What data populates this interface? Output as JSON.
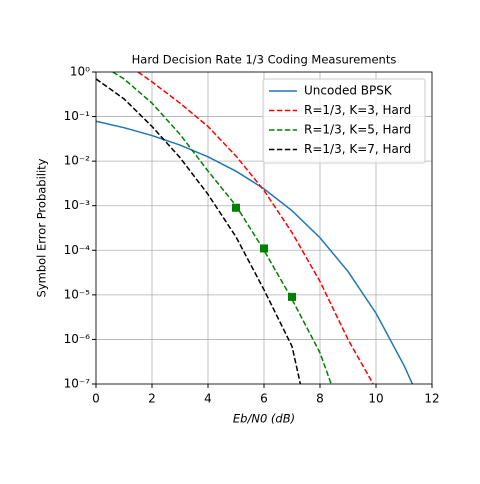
{
  "chart_data": {
    "type": "line",
    "title": "Hard Decision Rate 1/3 Coding Measurements",
    "xlabel": "Eb/N0 (dB)",
    "ylabel": "Symbol Error Probability",
    "xlim": [
      0,
      12
    ],
    "ylim": [
      1e-07,
      1
    ],
    "yscale": "log",
    "grid": true,
    "legend": "upper right",
    "xticks": [
      0,
      2,
      4,
      6,
      8,
      10,
      12
    ],
    "yticks": [
      {
        "value": 1,
        "label": "10⁰"
      },
      {
        "value": 0.1,
        "label": "10⁻¹"
      },
      {
        "value": 0.01,
        "label": "10⁻²"
      },
      {
        "value": 0.001,
        "label": "10⁻³"
      },
      {
        "value": 0.0001,
        "label": "10⁻⁴"
      },
      {
        "value": 1e-05,
        "label": "10⁻⁵"
      },
      {
        "value": 1e-06,
        "label": "10⁻⁶"
      },
      {
        "value": 1e-07,
        "label": "10⁻⁷"
      }
    ],
    "series": [
      {
        "name": "Uncoded BPSK",
        "color": "#1f77b4",
        "linestyle": "-",
        "x": [
          0,
          1,
          2,
          3,
          4,
          5,
          6,
          7,
          8,
          9,
          10,
          11,
          11.3
        ],
        "values": [
          0.0786,
          0.0563,
          0.0375,
          0.0229,
          0.0125,
          0.00595,
          0.00239,
          0.000773,
          0.000191,
          3.36e-05,
          3.87e-06,
          2.61e-07,
          1e-07
        ]
      },
      {
        "name": "R=1/3, K=3, Hard",
        "color": "#ff0000",
        "linestyle": "--",
        "x": [
          1.5,
          2,
          3,
          4,
          5,
          6,
          7,
          8,
          9,
          9.9
        ],
        "values": [
          1,
          0.6,
          0.2,
          0.06,
          0.013,
          0.0022,
          0.00025,
          2e-05,
          1e-06,
          1e-07
        ]
      },
      {
        "name": "R=1/3, K=5, Hard",
        "color": "#008000",
        "linestyle": "--",
        "x": [
          0.6,
          1,
          2,
          3,
          4,
          5,
          6,
          7,
          8,
          8.4
        ],
        "values": [
          1,
          0.7,
          0.2,
          0.04,
          0.006,
          0.001,
          0.0001,
          8e-06,
          5e-07,
          1e-07
        ]
      },
      {
        "name": "R=1/3, K=7, Hard",
        "color": "#000000",
        "linestyle": "--",
        "x": [
          0,
          1,
          2,
          3,
          4,
          5,
          6,
          7,
          7.3
        ],
        "values": [
          0.7,
          0.25,
          0.06,
          0.012,
          0.0018,
          0.0002,
          1.3e-05,
          7e-07,
          1e-07
        ]
      },
      {
        "type": "scatter",
        "color": "#008000",
        "marker": "s",
        "x": [
          5,
          6,
          7
        ],
        "values": [
          0.0009,
          0.00011,
          9e-06
        ]
      }
    ]
  }
}
